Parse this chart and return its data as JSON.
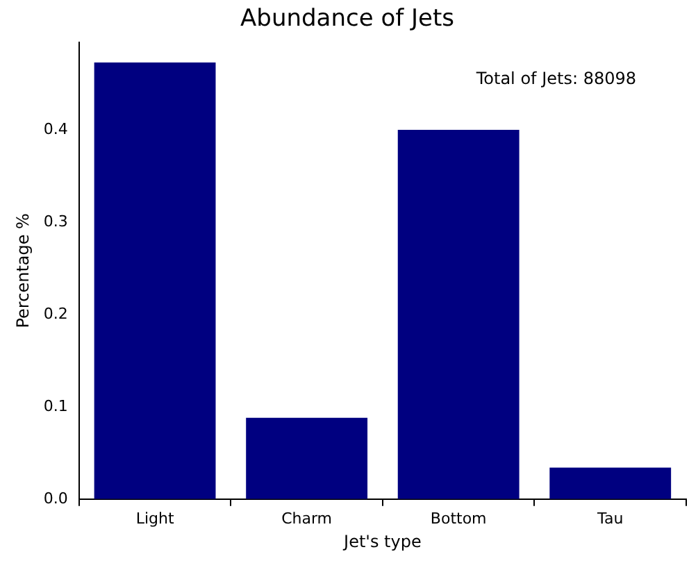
{
  "chart_data": {
    "type": "bar",
    "title": "Abundance of Jets",
    "xlabel": "Jet's type",
    "ylabel": "Percentage %",
    "categories": [
      "Light",
      "Charm",
      "Bottom",
      "Tau"
    ],
    "values": [
      0.473,
      0.088,
      0.4,
      0.034
    ],
    "color": "#000080",
    "ylim": [
      0,
      0.495
    ],
    "yticks": [
      {
        "value": 0,
        "label": "0.0"
      },
      0.1,
      0.2,
      0.3,
      0.4
    ],
    "annotations": [
      "Total of Jets: 88098"
    ],
    "grid": false,
    "legend": false
  }
}
